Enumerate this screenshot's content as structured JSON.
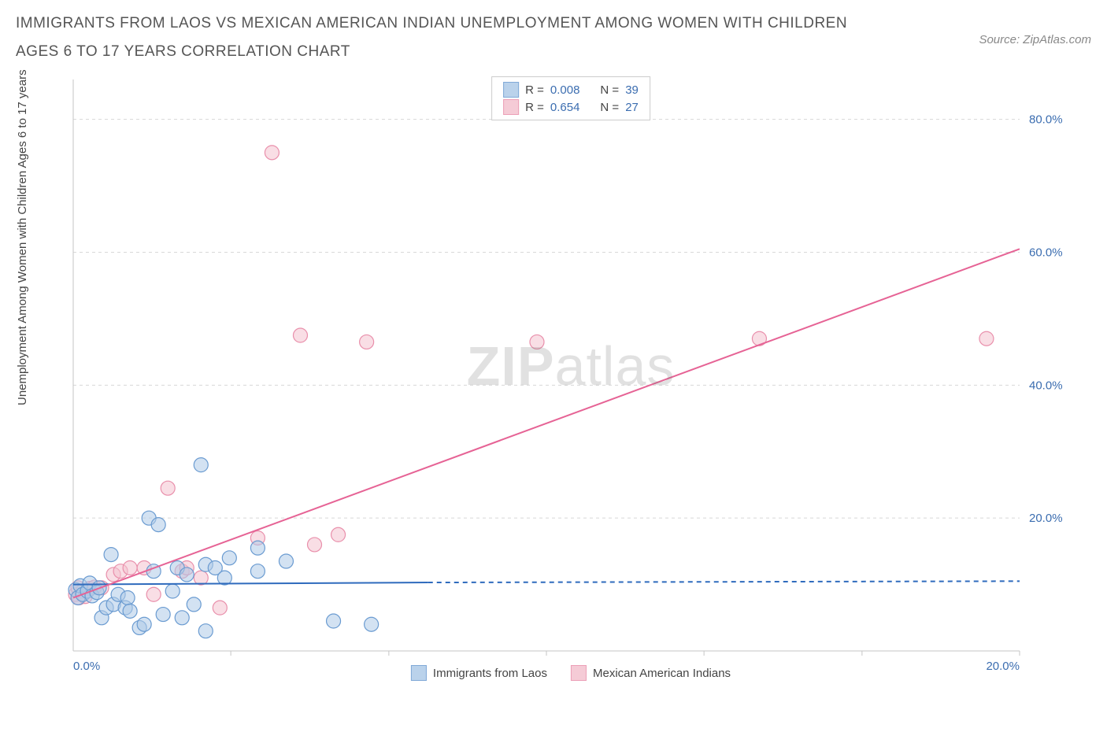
{
  "header": {
    "title": "IMMIGRANTS FROM LAOS VS MEXICAN AMERICAN INDIAN UNEMPLOYMENT AMONG WOMEN WITH CHILDREN AGES 6 TO 17 YEARS CORRELATION CHART",
    "source": "Source: ZipAtlas.com"
  },
  "chart": {
    "type": "scatter",
    "ylabel": "Unemployment Among Women with Children Ages 6 to 17 years",
    "watermark_bold": "ZIP",
    "watermark_rest": "atlas",
    "xlim": [
      0,
      20
    ],
    "ylim": [
      0,
      86
    ],
    "xtick_values": [
      0,
      20
    ],
    "xtick_labels": [
      "0.0%",
      "20.0%"
    ],
    "xgrid_values": [
      3.33,
      6.67,
      10,
      13.33,
      16.67,
      20
    ],
    "ytick_values": [
      20,
      40,
      60,
      80
    ],
    "ytick_labels": [
      "20.0%",
      "40.0%",
      "60.0%",
      "80.0%"
    ],
    "background_color": "#ffffff",
    "grid_color": "#d8d8d8",
    "axis_color": "#c6c6c6",
    "tick_label_color": "#3b6db0",
    "series_blue": {
      "label": "Immigrants from Laos",
      "fill": "#aecbe8",
      "stroke": "#6a9bd1",
      "fill_opacity": 0.55,
      "marker_r": 9,
      "stats": {
        "R": "0.008",
        "N": "39"
      },
      "points": [
        [
          0.05,
          9.2
        ],
        [
          0.1,
          8.0
        ],
        [
          0.15,
          9.8
        ],
        [
          0.2,
          8.5
        ],
        [
          0.3,
          9.0
        ],
        [
          0.35,
          10.2
        ],
        [
          0.4,
          8.3
        ],
        [
          0.5,
          8.8
        ],
        [
          0.55,
          9.5
        ],
        [
          0.6,
          5.0
        ],
        [
          0.7,
          6.5
        ],
        [
          0.8,
          14.5
        ],
        [
          0.85,
          7.0
        ],
        [
          0.95,
          8.5
        ],
        [
          1.1,
          6.5
        ],
        [
          1.15,
          8.0
        ],
        [
          1.2,
          6.0
        ],
        [
          1.4,
          3.5
        ],
        [
          1.5,
          4.0
        ],
        [
          1.6,
          20.0
        ],
        [
          1.7,
          12.0
        ],
        [
          1.8,
          19.0
        ],
        [
          1.9,
          5.5
        ],
        [
          2.1,
          9.0
        ],
        [
          2.2,
          12.5
        ],
        [
          2.3,
          5.0
        ],
        [
          2.4,
          11.5
        ],
        [
          2.55,
          7.0
        ],
        [
          2.7,
          28.0
        ],
        [
          2.8,
          13.0
        ],
        [
          2.8,
          3.0
        ],
        [
          3.0,
          12.5
        ],
        [
          3.2,
          11.0
        ],
        [
          3.3,
          14.0
        ],
        [
          3.9,
          12.0
        ],
        [
          3.9,
          15.5
        ],
        [
          4.5,
          13.5
        ],
        [
          5.5,
          4.5
        ],
        [
          6.3,
          4.0
        ]
      ],
      "trend": {
        "x1": 0,
        "y1": 10.0,
        "x2": 7.5,
        "y2": 10.3,
        "x_extend": 20,
        "y_extend": 10.5,
        "color": "#2f6bbd",
        "width": 2
      }
    },
    "series_pink": {
      "label": "Mexican American Indians",
      "fill": "#f4c2cf",
      "stroke": "#e98fab",
      "fill_opacity": 0.55,
      "marker_r": 9,
      "stats": {
        "R": "0.654",
        "N": "27"
      },
      "points": [
        [
          0.05,
          8.5
        ],
        [
          0.1,
          9.5
        ],
        [
          0.12,
          8.0
        ],
        [
          0.2,
          9.0
        ],
        [
          0.25,
          8.2
        ],
        [
          0.35,
          9.4
        ],
        [
          0.45,
          9.6
        ],
        [
          0.6,
          9.5
        ],
        [
          0.85,
          11.5
        ],
        [
          1.0,
          12.0
        ],
        [
          1.2,
          12.5
        ],
        [
          1.5,
          12.5
        ],
        [
          1.7,
          8.5
        ],
        [
          2.0,
          24.5
        ],
        [
          2.3,
          12.0
        ],
        [
          2.4,
          12.5
        ],
        [
          2.7,
          11.0
        ],
        [
          3.1,
          6.5
        ],
        [
          3.9,
          17.0
        ],
        [
          4.2,
          75.0
        ],
        [
          4.8,
          47.5
        ],
        [
          5.1,
          16.0
        ],
        [
          5.6,
          17.5
        ],
        [
          6.2,
          46.5
        ],
        [
          9.8,
          46.5
        ],
        [
          14.5,
          47.0
        ],
        [
          19.3,
          47.0
        ]
      ],
      "trend": {
        "x1": 0,
        "y1": 8.0,
        "x2": 20,
        "y2": 60.5,
        "color": "#e66395",
        "width": 2
      }
    },
    "legend_top": {
      "r_label": "R =",
      "n_label": "N ="
    }
  }
}
